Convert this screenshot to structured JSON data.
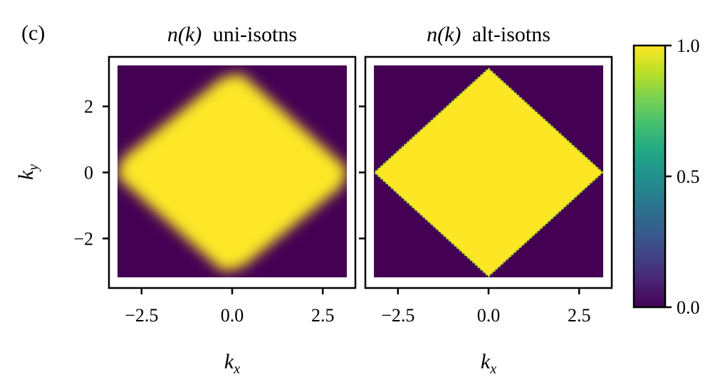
{
  "panel_label": "(c)",
  "colors": {
    "low": "#440154",
    "high": "#fde725",
    "axis": "#000000"
  },
  "colorbar": {
    "min": 0.0,
    "max": 1.0,
    "ticks": [
      "0.0",
      "0.5",
      "1.0"
    ],
    "tick_values": [
      0.0,
      0.5,
      1.0
    ],
    "colormap": "viridis"
  },
  "chart_data": [
    {
      "type": "heatmap",
      "title_math": "n(k)",
      "title_text": "uni-isotns",
      "xlabel_base": "k",
      "xlabel_sub": "x",
      "ylabel_base": "k",
      "ylabel_sub": "y",
      "xlim": [
        -3.4,
        3.4
      ],
      "ylim": [
        -3.5,
        3.5
      ],
      "x_ticks": [
        -2.5,
        0.0,
        2.5
      ],
      "x_tick_labels": [
        "−2.5",
        "0.0",
        "2.5"
      ],
      "y_ticks": [
        -2,
        0,
        2
      ],
      "y_tick_labels": [
        "−2",
        "0",
        "2"
      ],
      "grid_extent": [
        -3.14,
        3.14
      ],
      "occupied_region": "rounded diamond |kx|+|ky| <= ~3.0, smeared edge",
      "edge_width": 0.35,
      "values_inside": 1.0,
      "values_outside": 0.0
    },
    {
      "type": "heatmap",
      "title_math": "n(k)",
      "title_text": "alt-isotns",
      "xlabel_base": "k",
      "xlabel_sub": "x",
      "xlim": [
        -3.4,
        3.4
      ],
      "ylim": [
        -3.5,
        3.5
      ],
      "x_ticks": [
        -2.5,
        0.0,
        2.5
      ],
      "x_tick_labels": [
        "−2.5",
        "0.0",
        "2.5"
      ],
      "grid_extent": [
        -3.14,
        3.14
      ],
      "occupied_region": "sharp diamond |kx|+|ky| <= 3.14",
      "edge_width": 0.03,
      "values_inside": 1.0,
      "values_outside": 0.0
    }
  ]
}
